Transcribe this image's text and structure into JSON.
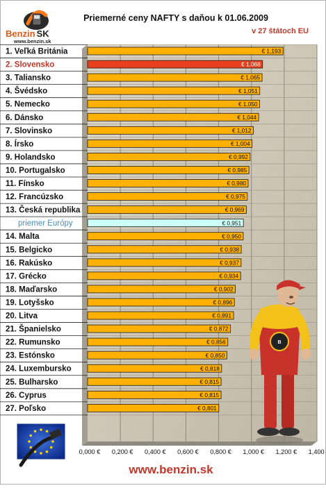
{
  "logo": {
    "brand_left": "Benzin",
    "brand_right": "SK",
    "url": "www.benzin.sk"
  },
  "footer_url": "www.benzin.sk",
  "colors": {
    "bar": "#ffb000",
    "bar_highlight": "#e8401c",
    "bar_average": "#ccfff5",
    "plot_bg": "#cfc8b8",
    "label_highlight": "#c0392b",
    "label_average": "#3f8fd0"
  },
  "icons": {
    "logo": "fuel-pump-logo-icon",
    "mascot": "mechanic-mascot-icon",
    "flag": "eu-flag-pump-icon"
  },
  "chart_data": {
    "type": "bar",
    "orientation": "horizontal",
    "title": "Priemerné ceny NAFTY s daňou k 01.06.2009",
    "subtitle": "v 27 štátoch EU",
    "categories": [
      "1. Veľká Británia",
      "2. Slovensko",
      "3. Taliansko",
      "4. Švédsko",
      "5. Nemecko",
      "6. Dánsko",
      "7. Slovinsko",
      "8. Írsko",
      "9. Holandsko",
      "10. Portugalsko",
      "11. Fínsko",
      "12. Francúzsko",
      "13. Česká republika",
      "priemer Európy",
      "14. Malta",
      "15. Belgicko",
      "16. Rakúsko",
      "17. Grécko",
      "18. Maďarsko",
      "19. Lotyšsko",
      "20. Litva",
      "21. Španielsko",
      "22. Rumunsko",
      "23. Estónsko",
      "24. Luxembursko",
      "25. Bulharsko",
      "26. Cyprus",
      "27. Poľsko"
    ],
    "values": [
      1.193,
      1.068,
      1.065,
      1.051,
      1.05,
      1.044,
      1.012,
      1.004,
      0.992,
      0.985,
      0.98,
      0.975,
      0.969,
      0.951,
      0.95,
      0.938,
      0.937,
      0.934,
      0.902,
      0.896,
      0.891,
      0.872,
      0.856,
      0.85,
      0.818,
      0.815,
      0.815,
      0.801
    ],
    "value_labels": [
      "€ 1,193",
      "€ 1,068",
      "€ 1,065",
      "€ 1,051",
      "€ 1,050",
      "€ 1,044",
      "€ 1,012",
      "€ 1,004",
      "€ 0,992",
      "€ 0,985",
      "€ 0,980",
      "€ 0,975",
      "€ 0,969",
      "€ 0,951",
      "€ 0,950",
      "€ 0,938",
      "€ 0,937",
      "€ 0,934",
      "€ 0,902",
      "€ 0,896",
      "€ 0,891",
      "€ 0,872",
      "€ 0,856",
      "€ 0,850",
      "€ 0,818",
      "€ 0,815",
      "€ 0,815",
      "€ 0,801"
    ],
    "highlight_index": 1,
    "average_index": 13,
    "xlim": [
      0,
      1.4
    ],
    "x_ticks": [
      0,
      0.2,
      0.4,
      0.6,
      0.8,
      1.0,
      1.2,
      1.4
    ],
    "x_tick_labels": [
      "0,000 €",
      "0,200 €",
      "0,400 €",
      "0,600 €",
      "0,800 €",
      "1,000 €",
      "1,200 €",
      "1,400 €"
    ],
    "grid": true,
    "legend": "none"
  }
}
